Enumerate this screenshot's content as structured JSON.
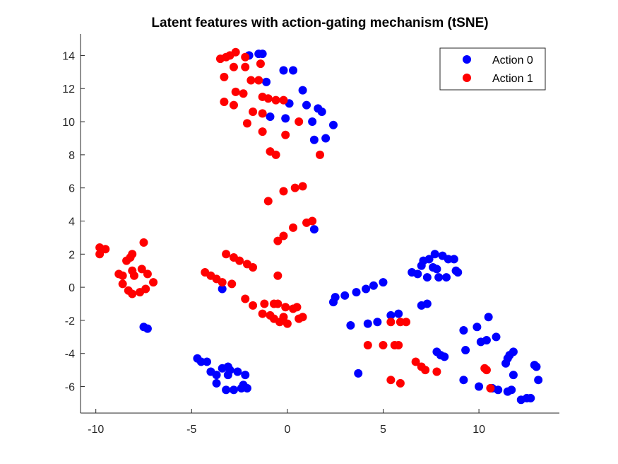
{
  "chart_data": {
    "type": "scatter",
    "title": "Latent features with action-gating mechanism (tSNE)",
    "xlabel": "",
    "ylabel": "",
    "xlim": [
      -10.8,
      14.2
    ],
    "ylim": [
      -7.6,
      15.3
    ],
    "xticks": [
      -10,
      -5,
      0,
      5,
      10
    ],
    "yticks": [
      -6,
      -4,
      -2,
      0,
      2,
      4,
      6,
      8,
      10,
      12,
      14
    ],
    "grid": false,
    "legend_position": "top-right",
    "series": [
      {
        "name": "Action 0",
        "color": "#0000ff",
        "points": [
          [
            -2.0,
            14.0
          ],
          [
            -1.5,
            14.1
          ],
          [
            -1.3,
            14.1
          ],
          [
            -0.2,
            13.1
          ],
          [
            0.3,
            13.1
          ],
          [
            -1.1,
            12.4
          ],
          [
            0.8,
            11.9
          ],
          [
            0.1,
            11.1
          ],
          [
            1.0,
            11.0
          ],
          [
            1.6,
            10.8
          ],
          [
            1.8,
            10.6
          ],
          [
            -0.9,
            10.3
          ],
          [
            -0.1,
            10.2
          ],
          [
            1.3,
            10.0
          ],
          [
            2.4,
            9.8
          ],
          [
            1.4,
            8.9
          ],
          [
            2.0,
            9.0
          ],
          [
            1.4,
            3.5
          ],
          [
            6.5,
            0.9
          ],
          [
            6.8,
            0.8
          ],
          [
            7.0,
            1.3
          ],
          [
            7.1,
            1.6
          ],
          [
            7.4,
            1.7
          ],
          [
            7.7,
            2.0
          ],
          [
            7.6,
            1.2
          ],
          [
            7.8,
            1.1
          ],
          [
            8.1,
            1.9
          ],
          [
            8.4,
            1.7
          ],
          [
            8.7,
            1.7
          ],
          [
            8.8,
            1.0
          ],
          [
            8.9,
            0.9
          ],
          [
            7.3,
            0.6
          ],
          [
            7.9,
            0.6
          ],
          [
            8.3,
            0.6
          ],
          [
            5.0,
            0.3
          ],
          [
            4.5,
            0.1
          ],
          [
            4.1,
            -0.1
          ],
          [
            3.6,
            -0.3
          ],
          [
            3.0,
            -0.5
          ],
          [
            2.5,
            -0.6
          ],
          [
            2.4,
            -0.9
          ],
          [
            7.0,
            -1.1
          ],
          [
            7.3,
            -1.0
          ],
          [
            5.8,
            -1.6
          ],
          [
            5.4,
            -1.7
          ],
          [
            4.2,
            -2.2
          ],
          [
            4.7,
            -2.1
          ],
          [
            3.3,
            -2.3
          ],
          [
            3.7,
            -5.2
          ],
          [
            7.8,
            -3.9
          ],
          [
            8.0,
            -4.1
          ],
          [
            8.2,
            -4.2
          ],
          [
            9.2,
            -2.6
          ],
          [
            9.9,
            -2.4
          ],
          [
            10.5,
            -1.8
          ],
          [
            9.3,
            -3.8
          ],
          [
            10.1,
            -3.3
          ],
          [
            10.4,
            -3.2
          ],
          [
            10.9,
            -3.0
          ],
          [
            11.5,
            -4.3
          ],
          [
            11.6,
            -4.1
          ],
          [
            11.8,
            -3.9
          ],
          [
            11.4,
            -4.6
          ],
          [
            11.8,
            -5.3
          ],
          [
            9.2,
            -5.6
          ],
          [
            10.0,
            -6.0
          ],
          [
            10.7,
            -6.1
          ],
          [
            11.0,
            -6.2
          ],
          [
            11.5,
            -6.3
          ],
          [
            11.7,
            -6.2
          ],
          [
            12.2,
            -6.8
          ],
          [
            12.5,
            -6.7
          ],
          [
            12.7,
            -6.7
          ],
          [
            12.9,
            -4.7
          ],
          [
            13.0,
            -4.8
          ],
          [
            13.1,
            -5.6
          ],
          [
            -4.7,
            -4.3
          ],
          [
            -4.5,
            -4.5
          ],
          [
            -4.2,
            -4.5
          ],
          [
            -4.0,
            -5.1
          ],
          [
            -3.7,
            -5.3
          ],
          [
            -3.4,
            -4.9
          ],
          [
            -3.1,
            -4.8
          ],
          [
            -3.0,
            -5.0
          ],
          [
            -3.1,
            -5.3
          ],
          [
            -2.6,
            -5.1
          ],
          [
            -2.2,
            -5.3
          ],
          [
            -3.7,
            -5.8
          ],
          [
            -3.2,
            -6.2
          ],
          [
            -2.8,
            -6.2
          ],
          [
            -2.3,
            -5.9
          ],
          [
            -2.1,
            -6.1
          ],
          [
            -2.4,
            -6.1
          ],
          [
            -3.4,
            -0.1
          ],
          [
            -7.5,
            -2.4
          ],
          [
            -7.3,
            -2.5
          ]
        ]
      },
      {
        "name": "Action 1",
        "color": "#ff0000",
        "points": [
          [
            -3.5,
            13.8
          ],
          [
            -3.2,
            13.9
          ],
          [
            -3.0,
            14.0
          ],
          [
            -2.7,
            14.2
          ],
          [
            -2.2,
            13.9
          ],
          [
            -1.4,
            13.5
          ],
          [
            -2.8,
            13.3
          ],
          [
            -2.2,
            13.3
          ],
          [
            -3.3,
            12.7
          ],
          [
            -1.9,
            12.5
          ],
          [
            -1.5,
            12.5
          ],
          [
            -2.7,
            11.8
          ],
          [
            -2.3,
            11.7
          ],
          [
            -3.3,
            11.2
          ],
          [
            -2.8,
            11.0
          ],
          [
            -1.3,
            11.5
          ],
          [
            -1.0,
            11.4
          ],
          [
            -0.6,
            11.3
          ],
          [
            -0.2,
            11.3
          ],
          [
            -1.8,
            10.6
          ],
          [
            -1.3,
            10.5
          ],
          [
            -2.1,
            9.9
          ],
          [
            -1.3,
            9.4
          ],
          [
            -0.1,
            9.2
          ],
          [
            0.6,
            10.0
          ],
          [
            -0.9,
            8.2
          ],
          [
            -0.6,
            8.0
          ],
          [
            1.7,
            8.0
          ],
          [
            -1.0,
            5.2
          ],
          [
            -0.2,
            5.8
          ],
          [
            0.4,
            6.0
          ],
          [
            0.8,
            6.1
          ],
          [
            1.0,
            3.9
          ],
          [
            1.3,
            4.0
          ],
          [
            0.3,
            3.6
          ],
          [
            -0.2,
            3.1
          ],
          [
            -0.5,
            2.8
          ],
          [
            -3.2,
            2.0
          ],
          [
            -2.8,
            1.8
          ],
          [
            -2.5,
            1.6
          ],
          [
            -2.1,
            1.4
          ],
          [
            -1.8,
            1.2
          ],
          [
            -4.3,
            0.9
          ],
          [
            -4.0,
            0.7
          ],
          [
            -3.7,
            0.5
          ],
          [
            -3.4,
            0.3
          ],
          [
            -2.9,
            0.2
          ],
          [
            -0.5,
            0.7
          ],
          [
            -2.2,
            -0.7
          ],
          [
            -1.8,
            -1.1
          ],
          [
            -1.2,
            -1.0
          ],
          [
            -0.7,
            -1.0
          ],
          [
            -0.5,
            -1.0
          ],
          [
            -0.1,
            -1.2
          ],
          [
            0.3,
            -1.3
          ],
          [
            0.5,
            -1.2
          ],
          [
            -1.3,
            -1.6
          ],
          [
            -0.9,
            -1.7
          ],
          [
            -0.7,
            -1.9
          ],
          [
            -0.4,
            -2.1
          ],
          [
            -0.2,
            -1.8
          ],
          [
            0.0,
            -2.2
          ],
          [
            0.6,
            -1.9
          ],
          [
            0.8,
            -1.8
          ],
          [
            -9.8,
            2.0
          ],
          [
            -9.8,
            2.4
          ],
          [
            -9.5,
            2.3
          ],
          [
            -8.4,
            1.6
          ],
          [
            -8.2,
            1.8
          ],
          [
            -8.1,
            2.0
          ],
          [
            -7.5,
            2.7
          ],
          [
            -8.8,
            0.8
          ],
          [
            -8.6,
            0.7
          ],
          [
            -8.1,
            1.0
          ],
          [
            -8.0,
            0.7
          ],
          [
            -7.6,
            1.1
          ],
          [
            -7.3,
            0.8
          ],
          [
            -7.0,
            0.3
          ],
          [
            -8.6,
            0.2
          ],
          [
            -8.3,
            -0.2
          ],
          [
            -8.1,
            -0.4
          ],
          [
            -7.7,
            -0.3
          ],
          [
            -7.4,
            -0.1
          ],
          [
            5.4,
            -2.1
          ],
          [
            5.9,
            -2.1
          ],
          [
            6.2,
            -2.1
          ],
          [
            4.2,
            -3.5
          ],
          [
            5.0,
            -3.5
          ],
          [
            5.6,
            -3.5
          ],
          [
            5.8,
            -3.5
          ],
          [
            6.7,
            -4.5
          ],
          [
            7.0,
            -4.8
          ],
          [
            7.2,
            -5.0
          ],
          [
            7.8,
            -5.1
          ],
          [
            5.4,
            -5.6
          ],
          [
            5.9,
            -5.8
          ],
          [
            10.3,
            -4.9
          ],
          [
            10.4,
            -5.0
          ],
          [
            10.6,
            -6.1
          ]
        ]
      }
    ]
  }
}
